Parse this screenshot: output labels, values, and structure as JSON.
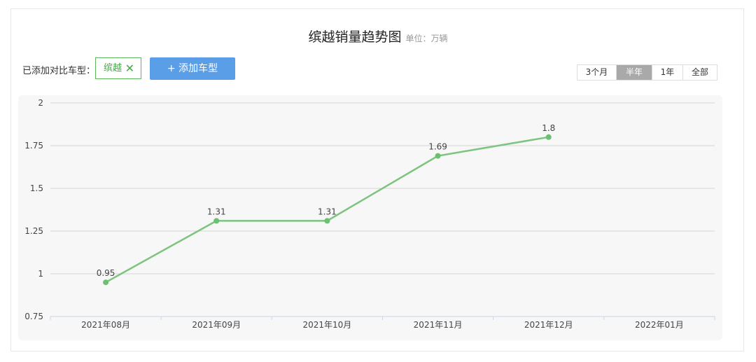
{
  "header": {
    "title": "缤越销量趋势图",
    "unit": "单位：万辆"
  },
  "compare": {
    "label": "已添加对比车型：",
    "tag_label": "缤越",
    "tag_close_glyph": "✕",
    "add_button_label": "+ 添加车型"
  },
  "range": {
    "options": [
      "3个月",
      "半年",
      "1年",
      "全部"
    ],
    "selected": "半年"
  },
  "colors": {
    "line": "#7cc47f",
    "point": "#6dbf72",
    "accent_button": "#5a9ee8",
    "tag_border": "#5cb85c",
    "range_active": "#a9a9a9",
    "grid": "#d6d6d6",
    "plot_bg": "#f7f7f7"
  },
  "chart_data": {
    "type": "line",
    "title": "缤越销量趋势图",
    "ylabel": "单位：万辆",
    "categories": [
      "2021年08月",
      "2021年09月",
      "2021年10月",
      "2021年11月",
      "2021年12月",
      "2022年01月"
    ],
    "series": [
      {
        "values": [
          0.95,
          1.31,
          1.31,
          1.69,
          1.8,
          null
        ]
      }
    ],
    "data_labels": [
      "0.95",
      "1.31",
      "1.31",
      "1.69",
      "1.8",
      ""
    ],
    "y_ticks": [
      "2",
      "1.75",
      "1.5",
      "1.25",
      "1",
      "0.75"
    ],
    "ylim": [
      0.75,
      2
    ],
    "grid": true,
    "legend": "none"
  }
}
